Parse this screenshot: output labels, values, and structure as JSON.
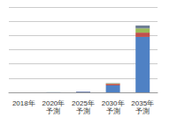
{
  "chart_data": {
    "type": "bar",
    "stacked": true,
    "categories": [
      "2018年",
      "2020年\n予測",
      "2025年\n予測",
      "2030年\n予測",
      "2035年\n予測"
    ],
    "series": [
      {
        "color": "#4f81c4",
        "values": [
          0,
          0.01,
          0.05,
          0.5,
          3.9
        ]
      },
      {
        "color": "#c0504d",
        "values": [
          0,
          0,
          0.01,
          0.1,
          0.3
        ]
      },
      {
        "color": "#9bbb59",
        "values": [
          0,
          0,
          0,
          0.03,
          0.3
        ]
      },
      {
        "color": "#6f7f95",
        "values": [
          0,
          0,
          0,
          0.02,
          0.2
        ]
      }
    ],
    "ylim": [
      0,
      6
    ],
    "yticks": [
      0,
      1,
      2,
      3,
      4,
      5,
      6
    ],
    "grid": true,
    "tick_labels": "x"
  }
}
